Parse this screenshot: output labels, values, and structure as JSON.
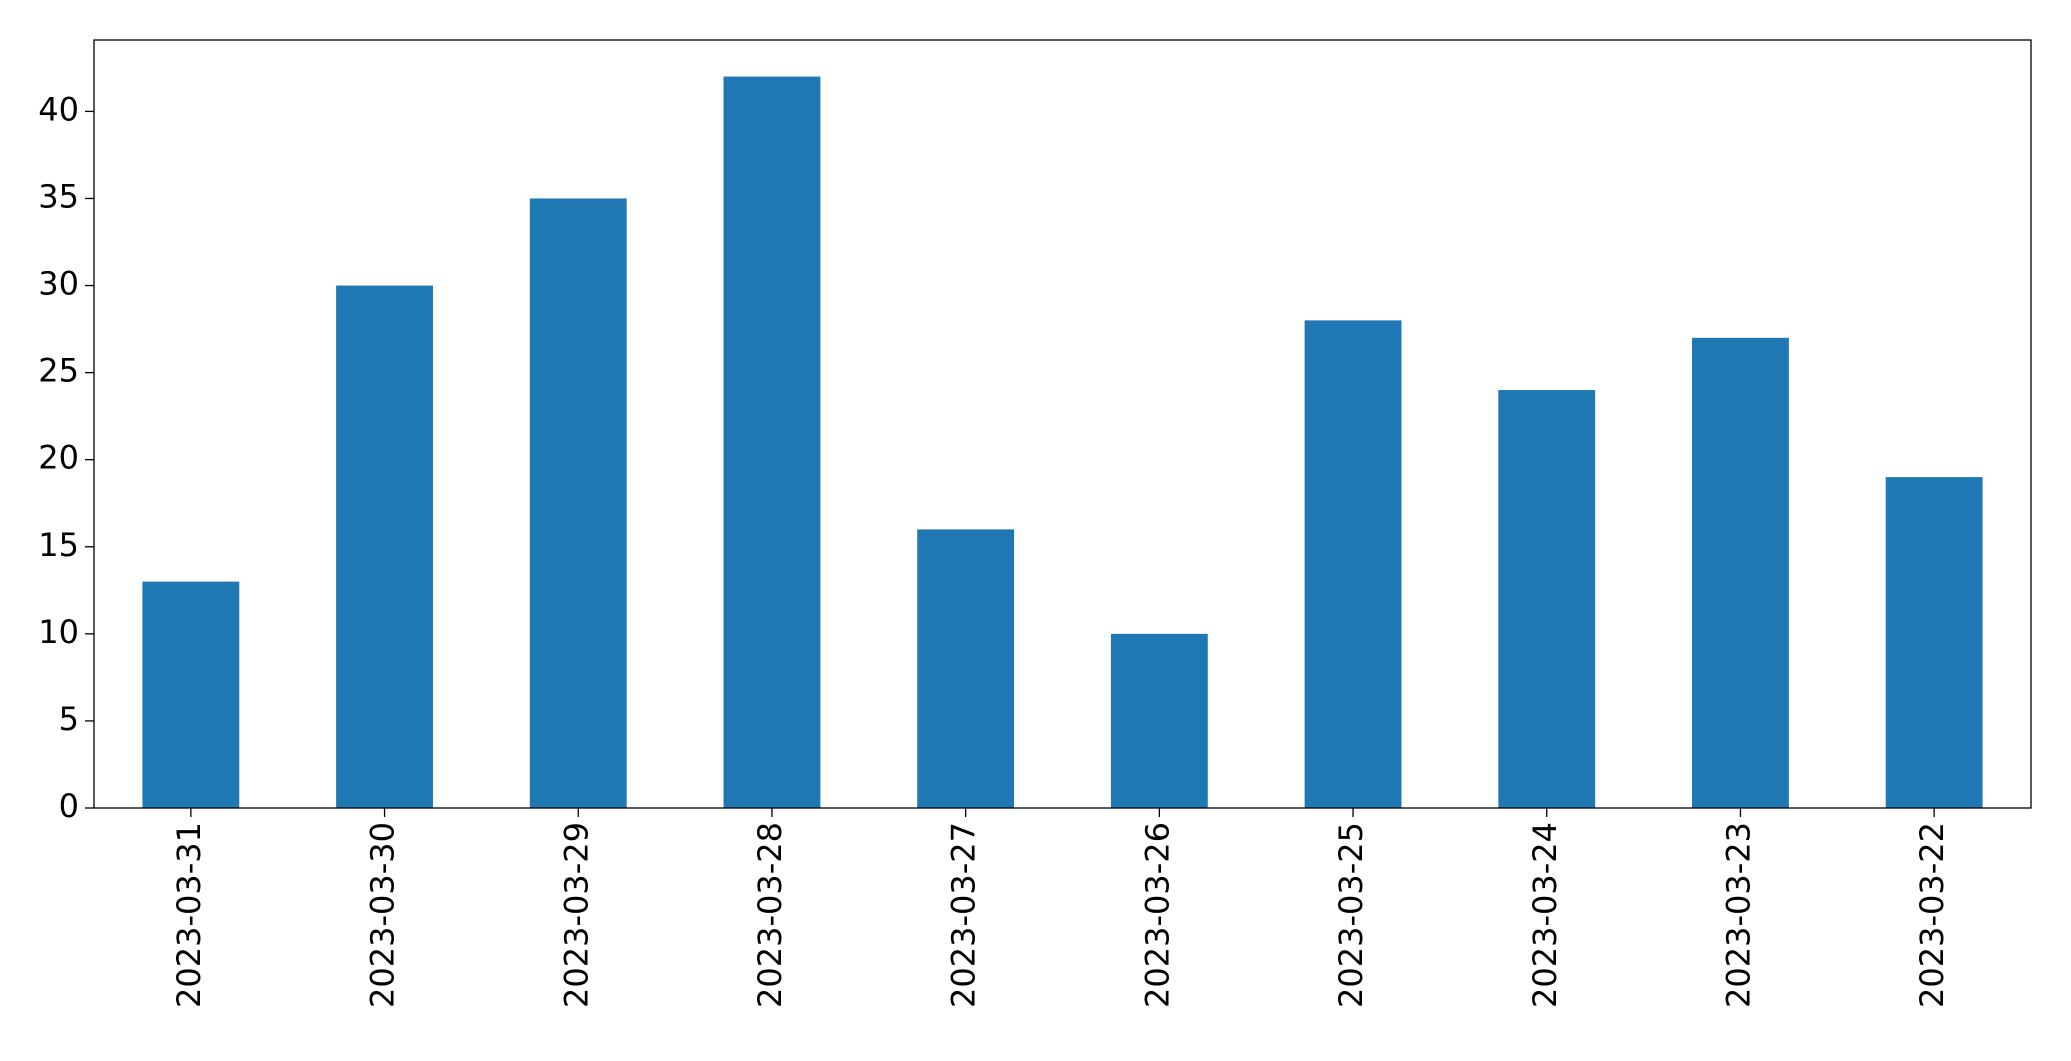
{
  "chart_data": {
    "type": "bar",
    "categories": [
      "2023-03-31",
      "2023-03-30",
      "2023-03-29",
      "2023-03-28",
      "2023-03-27",
      "2023-03-26",
      "2023-03-25",
      "2023-03-24",
      "2023-03-23",
      "2023-03-22"
    ],
    "values": [
      13,
      30,
      35,
      42,
      16,
      10,
      28,
      24,
      27,
      19
    ],
    "color": "#1f77b4",
    "ylim": [
      0,
      44.1
    ],
    "yticks": [
      0,
      5,
      10,
      15,
      20,
      25,
      30,
      35,
      40
    ],
    "grid": false
  }
}
